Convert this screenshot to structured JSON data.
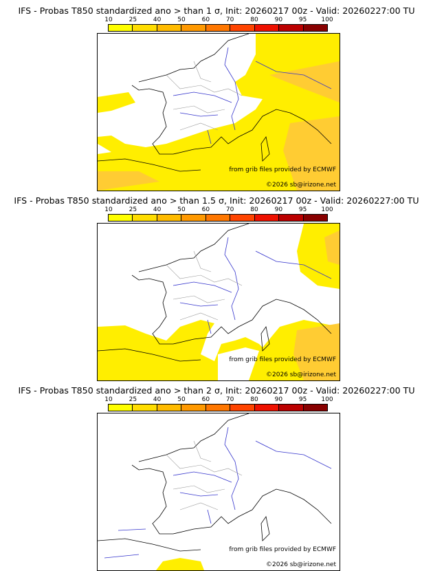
{
  "colorbar": {
    "ticks": [
      "10",
      "25",
      "40",
      "50",
      "60",
      "70",
      "80",
      "90",
      "95",
      "100"
    ],
    "colors": [
      "#ffff00",
      "#ffdd00",
      "#ffbb00",
      "#ff9900",
      "#ff7700",
      "#ff4400",
      "#ee1100",
      "#bb0000",
      "#880000"
    ]
  },
  "panels": [
    {
      "title": "IFS - Probas T850  standardized ano > than 1 σ, Init: 20260217 00z - Valid: 20260227:00 TU",
      "source_credit": "from grib files provided by ECMWF",
      "copyright": "©2026 sb@irizone.net"
    },
    {
      "title": "IFS - Probas T850  standardized ano > than 1.5 σ, Init: 20260217 00z - Valid: 20260227:00 TU",
      "source_credit": "from grib files provided by ECMWF",
      "copyright": "©2026 sb@irizone.net"
    },
    {
      "title": "IFS - Probas T850  standardized ano > than 2 σ, Init: 20260217 00z - Valid: 20260227:00 TU",
      "source_credit": "from grib files provided by ECMWF",
      "copyright": "©2026 sb@irizone.net"
    }
  ],
  "colors": {
    "yellow": "#ffee00",
    "light_orange": "#ffcc00",
    "orange": "#ffaa00",
    "coast": "#000000",
    "rivers": "#3333cc",
    "borders": "#999999"
  }
}
